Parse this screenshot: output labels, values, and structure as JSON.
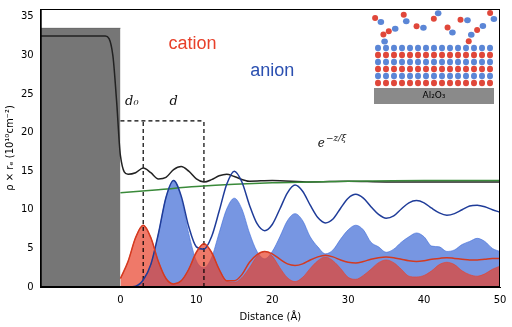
{
  "chart_data": {
    "type": "line",
    "x_label": "Distance (Å)",
    "y_label": "ρ × rₑ (10¹⁰cm⁻²)",
    "xlim": [
      -10.5,
      50
    ],
    "xticks": [
      0,
      10,
      20,
      30,
      40,
      50
    ],
    "ylim": [
      0,
      36
    ],
    "yticks": [
      0,
      5,
      10,
      15,
      20,
      25,
      30,
      35
    ],
    "grid": false,
    "series": [
      {
        "type": "area",
        "color": "#3c3c3c",
        "x": [
          -10.5,
          0
        ],
        "values": [
          33.5,
          33.5
        ]
      },
      {
        "type": "area",
        "color": "#e8402a",
        "x": [
          0,
          1,
          2,
          3,
          4,
          5,
          6,
          7,
          8,
          9,
          10,
          11,
          12,
          13,
          14,
          15,
          16,
          17,
          18,
          19,
          20,
          21,
          22,
          23,
          24,
          25,
          26,
          27,
          28,
          29,
          30,
          31,
          32,
          33,
          34,
          35,
          36,
          37,
          38,
          39,
          40,
          41,
          42,
          43,
          44,
          45,
          46,
          47,
          48,
          49,
          50
        ],
        "values": [
          1.1,
          3.3,
          6.4,
          8.0,
          6.4,
          3.3,
          1.1,
          0.4,
          0.8,
          2.3,
          4.5,
          5.6,
          4.5,
          2.3,
          0.8,
          0.6,
          1.2,
          2.5,
          4.0,
          4.6,
          4.0,
          2.5,
          1.2,
          0.7,
          1.25,
          2.4,
          3.4,
          3.9,
          3.4,
          2.4,
          1.25,
          1.0,
          1.5,
          2.3,
          3.15,
          3.5,
          3.15,
          2.3,
          1.4,
          1.3,
          1.5,
          2.1,
          2.9,
          3.2,
          2.9,
          2.1,
          1.6,
          1.4,
          1.7,
          2.3,
          2.7
        ]
      },
      {
        "type": "area",
        "color": "#3d6ad6",
        "x": [
          0,
          1,
          2,
          3,
          4,
          5,
          6,
          7,
          8,
          9,
          10,
          11,
          12,
          13,
          14,
          15,
          16,
          17,
          18,
          19,
          20,
          21,
          22,
          23,
          24,
          25,
          26,
          27,
          28,
          29,
          30,
          31,
          32,
          33,
          34,
          35,
          36,
          37,
          38,
          39,
          40,
          41,
          42,
          43,
          44,
          45,
          46,
          47,
          48,
          49,
          50
        ],
        "values": [
          0,
          0,
          0.1,
          0.9,
          2.9,
          6.9,
          11.6,
          13.8,
          11.6,
          6.9,
          3.4,
          2.5,
          3.8,
          7.0,
          10.1,
          11.5,
          10.1,
          7.0,
          4.6,
          3.65,
          4.6,
          6.5,
          8.6,
          9.5,
          8.6,
          6.5,
          5.2,
          4.3,
          4.8,
          6.2,
          7.4,
          8.0,
          7.4,
          5.8,
          5.2,
          4.5,
          4.9,
          5.8,
          6.5,
          7.0,
          6.5,
          5.3,
          5.2,
          4.6,
          4.8,
          5.5,
          5.9,
          6.3,
          5.9,
          5.0,
          4.6
        ]
      },
      {
        "type": "line",
        "color": "#d43a20",
        "x": [
          0,
          1,
          2,
          3,
          4,
          5,
          6,
          7,
          8,
          9,
          10,
          11,
          12,
          13,
          14,
          15,
          16,
          17,
          18,
          19,
          20,
          21,
          22,
          23,
          24,
          25,
          26,
          27,
          28,
          29,
          30,
          31,
          32,
          33,
          34,
          35,
          36,
          37,
          38,
          39,
          40,
          41,
          42,
          43,
          44,
          45,
          46,
          47,
          48,
          49,
          50
        ],
        "values": [
          1.1,
          3.3,
          6.4,
          8.0,
          6.4,
          3.3,
          1.1,
          0.4,
          0.8,
          2.3,
          4.5,
          5.6,
          4.5,
          2.3,
          0.8,
          0.8,
          1.6,
          3.2,
          4.2,
          4.6,
          4.3,
          3.6,
          3.0,
          2.8,
          3.0,
          3.5,
          3.9,
          4.1,
          3.9,
          3.5,
          3.2,
          3.1,
          3.3,
          3.6,
          3.8,
          3.9,
          3.8,
          3.6,
          3.4,
          3.3,
          3.4,
          3.6,
          3.7,
          3.8,
          3.7,
          3.6,
          3.5,
          3.5,
          3.6,
          3.7,
          3.7
        ]
      },
      {
        "type": "line",
        "color": "#1f3c99",
        "x": [
          0,
          1,
          2,
          3,
          4,
          5,
          6,
          7,
          8,
          9,
          10,
          11,
          12,
          13,
          14,
          15,
          16,
          17,
          18,
          19,
          20,
          21,
          22,
          23,
          24,
          25,
          26,
          27,
          28,
          29,
          30,
          31,
          32,
          33,
          34,
          35,
          36,
          37,
          38,
          39,
          40,
          41,
          42,
          43,
          44,
          45,
          46,
          47,
          48,
          49,
          50
        ],
        "values": [
          0,
          0,
          0.1,
          0.9,
          2.9,
          6.9,
          11.6,
          13.8,
          11.8,
          7.8,
          5.2,
          4.9,
          6.5,
          9.8,
          13.3,
          15.0,
          13.6,
          10.6,
          8.2,
          7.3,
          8.1,
          10.1,
          12.2,
          13.2,
          12.4,
          10.6,
          9.0,
          8.3,
          8.8,
          10.2,
          11.5,
          12.0,
          11.5,
          10.4,
          9.4,
          8.9,
          9.2,
          10.1,
          10.9,
          11.2,
          10.9,
          10.2,
          9.6,
          9.3,
          9.5,
          10.0,
          10.5,
          10.6,
          10.4,
          10.0,
          9.7
        ]
      },
      {
        "type": "line",
        "color": "#3a8a3a",
        "x": [
          0,
          5,
          10,
          15,
          20,
          25,
          30,
          40,
          50
        ],
        "values": [
          12.2,
          12.6,
          13.0,
          13.3,
          13.5,
          13.6,
          13.7,
          13.8,
          13.8
        ]
      },
      {
        "type": "line",
        "color": "#222222",
        "x": [
          -10.5,
          -2,
          -1,
          -0.5,
          0,
          1,
          2,
          3,
          4,
          5,
          6,
          7,
          8,
          9,
          10,
          11,
          12,
          13,
          14,
          15,
          17,
          20,
          25,
          30,
          35,
          40,
          45,
          50
        ],
        "values": [
          32.5,
          32.5,
          30,
          24,
          17,
          14.6,
          14.8,
          15.4,
          14.8,
          14.0,
          14.2,
          15.2,
          15.6,
          15.0,
          14.0,
          13.6,
          13.9,
          14.4,
          14.6,
          14.3,
          13.7,
          13.8,
          13.6,
          13.7,
          13.6,
          13.6,
          13.6,
          13.6
        ]
      },
      {
        "type": "line",
        "color": "#000000",
        "line_style": "dashed",
        "x": [
          3,
          3
        ],
        "values": [
          0,
          21.5
        ]
      },
      {
        "type": "line",
        "color": "#000000",
        "line_style": "dashed",
        "x": [
          11,
          11
        ],
        "values": [
          0,
          21.5
        ]
      },
      {
        "type": "line",
        "color": "#000000",
        "line_style": "dashed",
        "x": [
          0,
          11
        ],
        "values": [
          21.5,
          21.5
        ]
      }
    ],
    "annotations": [
      {
        "text": "cation",
        "x": 9.5,
        "y": 31.5,
        "color": "#e8402a"
      },
      {
        "text": "anion",
        "x": 20,
        "y": 28,
        "color": "#2a4fb0"
      },
      {
        "text": "d₀",
        "x": 1.5,
        "y": 24
      },
      {
        "text": "d",
        "x": 7,
        "y": 24
      },
      {
        "text": "e",
        "sup": "−z/ξ",
        "x": 26,
        "y": 18.5
      }
    ],
    "inset_label": "Al₂O₃"
  }
}
